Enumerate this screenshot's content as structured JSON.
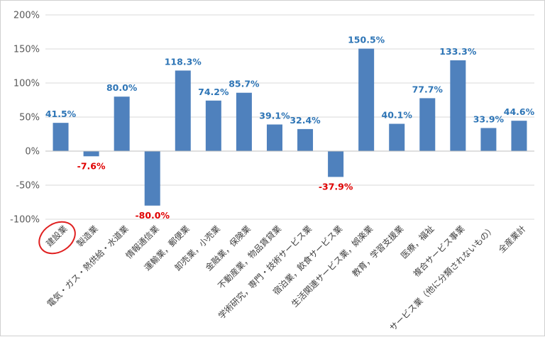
{
  "chart_data": {
    "type": "bar",
    "title": "",
    "xlabel": "",
    "ylabel": "",
    "ylim": [
      -100,
      200
    ],
    "yticks": [
      "200%",
      "150%",
      "100%",
      "50%",
      "0%",
      "-50%",
      "-100%"
    ],
    "grid": true,
    "legend": "none",
    "categories": [
      "建設業",
      "製造業",
      "電気・ガス・熱供給・水道業",
      "情報通信業",
      "運輸業，郵便業",
      "卸売業，小売業",
      "金融業，保険業",
      "不動産業，物品賃貸業",
      "学術研究，専門・技術サービス業",
      "宿泊業，飲食サービス業",
      "生活関連サービス業，娯楽業",
      "教育，学習支援業",
      "医療，福祉",
      "複合サービス事業",
      "サービス業（他に分類されないもの）",
      "全産業計"
    ],
    "values": [
      41.5,
      -7.6,
      80.0,
      -80.0,
      118.3,
      74.2,
      85.7,
      39.1,
      32.4,
      -37.9,
      150.5,
      40.1,
      77.7,
      133.3,
      33.9,
      44.6
    ],
    "data_labels": [
      "41.5%",
      "-7.6%",
      "80.0%",
      "-80.0%",
      "118.3%",
      "74.2%",
      "85.7%",
      "39.1%",
      "32.4%",
      "-37.9%",
      "150.5%",
      "40.1%",
      "77.7%",
      "133.3%",
      "33.9%",
      "44.6%"
    ],
    "highlighted_category": "建設業",
    "colors": {
      "bar": "#4f81bd",
      "positive_label": "#2e75b6",
      "negative_label": "#e00000",
      "highlight_circle": "#e02020",
      "gridline": "#d9d9d9",
      "axis": "#bfbfbf"
    }
  }
}
